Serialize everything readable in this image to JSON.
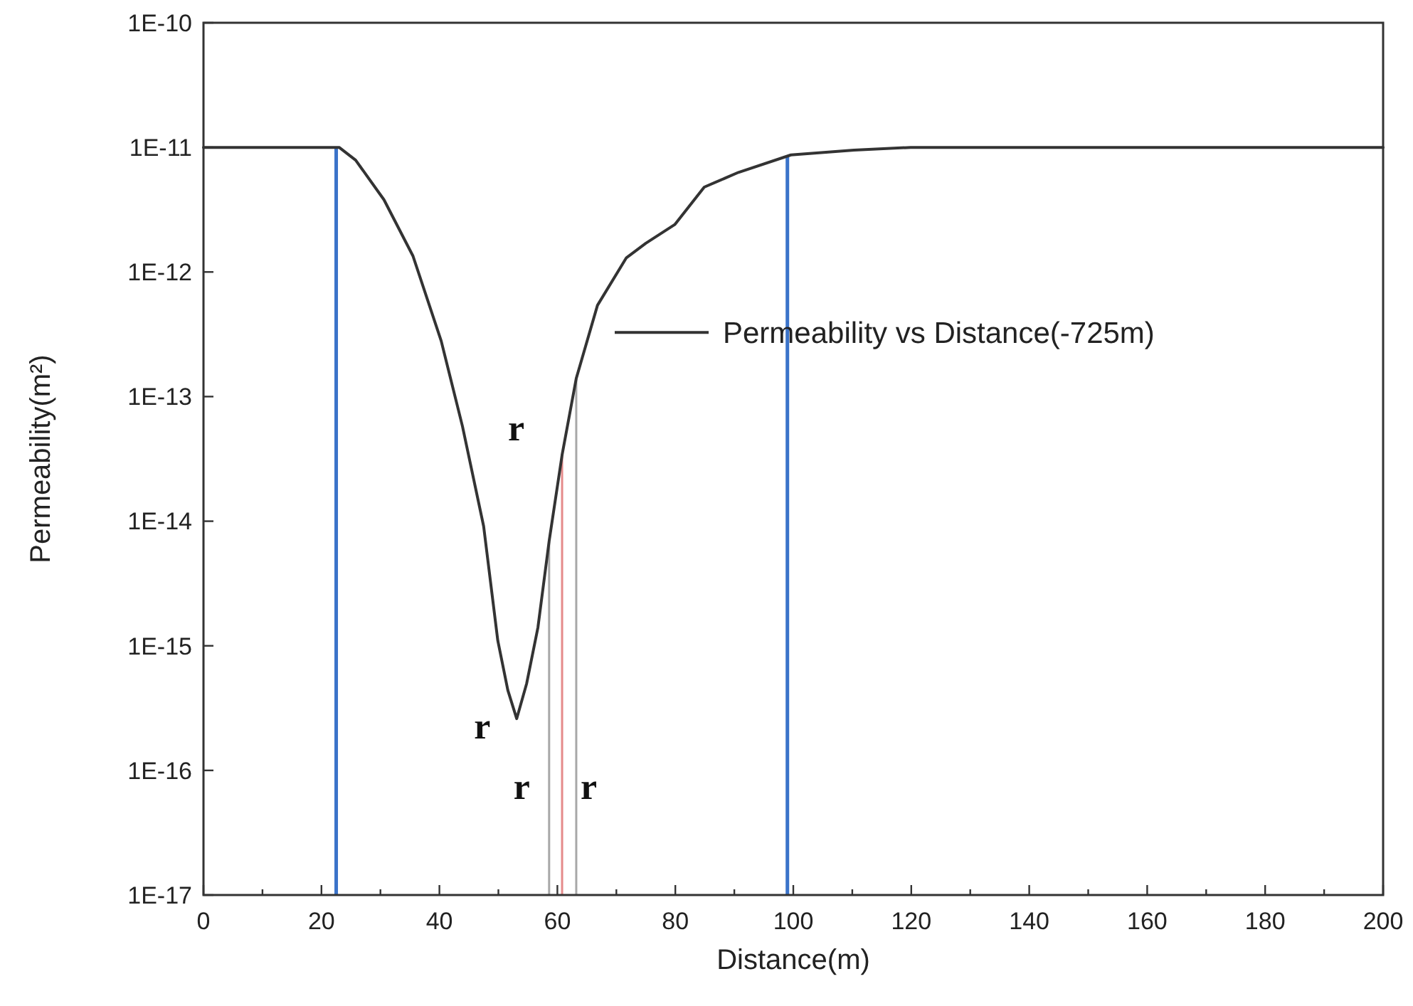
{
  "chart_data": {
    "type": "line",
    "xlabel": "Distance(m)",
    "ylabel": "Permeability(m²)",
    "log": "y",
    "x": [
      0,
      23,
      25.8,
      30.6,
      35.5,
      40.3,
      43.9,
      47.5,
      49.9,
      51.6,
      53.1,
      54.8,
      56.7,
      58.6,
      60.8,
      63.2,
      66.8,
      71.7,
      75,
      79.9,
      84.9,
      90.7,
      99.6,
      110.3,
      119.9,
      200
    ],
    "series": [
      {
        "name": "Permeability vs Distance(-725m)",
        "color": "#333333",
        "values": [
          1e-11,
          1e-11,
          7.9e-12,
          3.8e-12,
          1.35e-12,
          2.8e-13,
          5.8e-14,
          9.1e-15,
          1.1e-15,
          4.4e-16,
          2.6e-16,
          5e-16,
          1.4e-15,
          6.9e-15,
          3.4e-14,
          1.4e-13,
          5.4e-13,
          1.3e-12,
          1.7e-12,
          2.4e-12,
          4.8e-12,
          6.3e-12,
          8.7e-12,
          9.5e-12,
          1e-11,
          1e-11
        ]
      }
    ],
    "xlim": [
      0,
      200
    ],
    "ylim": [
      1e-17,
      1e-10
    ],
    "xticks": [
      0,
      {
        "value": 10,
        "label": null
      },
      20,
      {
        "value": 30,
        "label": null
      },
      40,
      {
        "value": 50,
        "label": null
      },
      60,
      {
        "value": 70,
        "label": null
      },
      80,
      {
        "value": 90,
        "label": null
      },
      100,
      {
        "value": 110,
        "label": null
      },
      120,
      {
        "value": 130,
        "label": null
      },
      140,
      {
        "value": 150,
        "label": null
      },
      160,
      {
        "value": 170,
        "label": null
      },
      180,
      {
        "value": 190,
        "label": null
      },
      200
    ],
    "yticks": [
      {
        "value": 1e-17,
        "label": "1E-17"
      },
      {
        "value": 1e-16,
        "label": "1E-16"
      },
      {
        "value": 1e-15,
        "label": "1E-15"
      },
      {
        "value": 1e-14,
        "label": "1E-14"
      },
      {
        "value": 1e-13,
        "label": "1E-13"
      },
      {
        "value": 1e-12,
        "label": "1E-12"
      },
      {
        "value": 1e-11,
        "label": "1E-11"
      },
      {
        "value": 1e-10,
        "label": "1E-10"
      }
    ],
    "ref_lines": [
      {
        "axis": "x",
        "value": 22.5,
        "color": "#3b73c9"
      },
      {
        "axis": "x",
        "value": 99,
        "color": "#3b73c9"
      },
      {
        "axis": "x",
        "value": 58.6,
        "color": "#a8a8a8"
      },
      {
        "axis": "x",
        "value": 60.8,
        "color": "#e58a8a"
      },
      {
        "axis": "x",
        "value": 63.2,
        "color": "#a8a8a8"
      }
    ],
    "annotations": [
      {
        "text": "r",
        "x": 53.1,
        "y": 2.6e-16
      },
      {
        "text": "r",
        "x": 60.8,
        "y": 3.4e-14
      },
      {
        "text": "r",
        "x": 58.6,
        "y": 1e-16
      },
      {
        "text": "r",
        "x": 63.2,
        "y": 1e-16
      }
    ],
    "grid": false,
    "legend": "right",
    "marker": "none",
    "line_style": "solid"
  }
}
